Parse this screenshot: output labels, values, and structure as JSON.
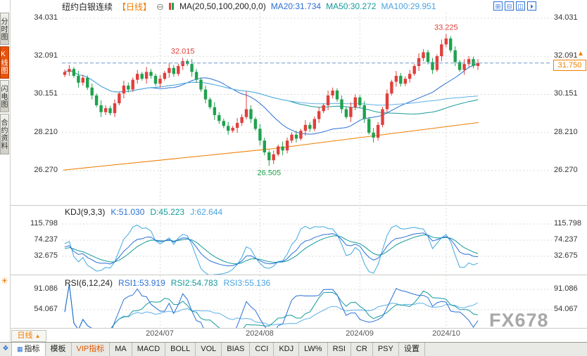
{
  "header": {
    "title": "纽约白银连续",
    "period_tag": "【日线】",
    "ma_label": "MA(20,50,100,200,0,0)",
    "ma20": "MA20:31.734",
    "ma50": "MA50:30.272",
    "ma100": "MA100:29.951"
  },
  "icons": {
    "zoom_out": "⊖",
    "layout_grid": "⊞",
    "layout_split_h": "⊟",
    "layout_split_v": "◫",
    "layout_expand": "⏵",
    "up_arrow": "▲",
    "sun": "☀",
    "window_grid": "❖",
    "tab_grid": "▦"
  },
  "sidebar": {
    "items": [
      {
        "label": "分时图"
      },
      {
        "label": "K线图"
      },
      {
        "label": "闪电图"
      },
      {
        "label": "合约资料"
      }
    ]
  },
  "main_chart": {
    "y_labels": [
      "34.031",
      "32.091",
      "30.151",
      "28.210",
      "26.270"
    ],
    "current_price": "31.750"
  },
  "kdj": {
    "header": "KDJ(9,3,3)",
    "k": "K:51.030",
    "d": "D:45.223",
    "j": "J:62.644",
    "y_labels": [
      "115.798",
      "74.237",
      "32.675"
    ]
  },
  "rsi": {
    "header": "RSI(6,12,24)",
    "r1": "RSI1:53.919",
    "r2": "RSI2:54.783",
    "r3": "RSI3:55.136",
    "y_labels": [
      "91.086",
      "54.067"
    ]
  },
  "x_axis": {
    "labels": [
      "2024/07",
      "2024/08",
      "2024/09",
      "2024/10"
    ]
  },
  "period_selector": {
    "label": "日线"
  },
  "watermark": "FX678",
  "tabs": [
    "指标",
    "模板",
    "VIP指标",
    "MA",
    "MACD",
    "BOLL",
    "VOL",
    "BIAS",
    "CCI",
    "KDJ",
    "LW%",
    "RSI",
    "CR",
    "PSY",
    "设置"
  ],
  "chart_data": {
    "type": "candlestick",
    "symbol": "纽约白银连续",
    "period": "日线",
    "main_y_ticks": [
      34.031,
      32.091,
      30.151,
      28.21,
      26.27
    ],
    "current_price_value": 31.75,
    "ma_values": {
      "ma20": 31.734,
      "ma50": 30.272,
      "ma100": 29.951
    },
    "ma200_endpoints": [
      26.3,
      28.72
    ],
    "kdj_params": [
      9,
      3,
      3
    ],
    "kdj_values": {
      "k": 51.03,
      "d": 45.223,
      "j": 62.644
    },
    "kdj_y_ticks": [
      115.798,
      74.237,
      32.675
    ],
    "rsi_params": [
      6,
      12,
      24
    ],
    "rsi_values": {
      "rsi1": 53.919,
      "rsi2": 54.783,
      "rsi3": 55.136
    },
    "rsi_y_ticks": [
      91.086,
      54.067
    ],
    "x_axis_months": [
      "2024/07",
      "2024/08",
      "2024/09",
      "2024/10"
    ],
    "month_tick_indices": [
      21,
      43,
      65,
      84
    ],
    "annotations": [
      {
        "index": 26,
        "value": 32.015,
        "text": "32.015",
        "above": true,
        "color": "#e0403c"
      },
      {
        "index": 84,
        "value": 33.225,
        "text": "33.225",
        "above": true,
        "color": "#e0403c"
      },
      {
        "index": 45,
        "value": 26.505,
        "text": "26.505",
        "above": false,
        "color": "#1fa24e"
      }
    ],
    "colors": {
      "up": "#e0403c",
      "down": "#1fa24e",
      "ma20": "#2b6fd6",
      "ma50": "#159a9a",
      "ma100": "#5fb0e8",
      "ma200": "#f07d00",
      "grid": "#d9d9d4",
      "dash": "#6a9ad0",
      "kdj_k": "#2b6fd6",
      "kdj_d": "#159a9a",
      "kdj_j": "#3fa9df",
      "rsi1": "#2b6fd6",
      "rsi2": "#159a9a",
      "rsi3": "#5fb0e8"
    },
    "candles": [
      [
        31.15,
        31.42,
        31.03,
        31.3
      ],
      [
        31.3,
        31.65,
        31.1,
        31.45
      ],
      [
        31.45,
        31.55,
        31.0,
        31.1
      ],
      [
        31.1,
        31.35,
        30.5,
        30.75
      ],
      [
        30.75,
        31.15,
        30.6,
        31.0
      ],
      [
        31.0,
        31.12,
        30.38,
        30.5
      ],
      [
        30.5,
        30.7,
        29.9,
        30.1
      ],
      [
        30.1,
        30.2,
        29.5,
        29.6
      ],
      [
        29.6,
        29.85,
        29.0,
        29.25
      ],
      [
        29.25,
        29.6,
        29.1,
        29.45
      ],
      [
        29.45,
        29.57,
        29.08,
        29.2
      ],
      [
        29.2,
        29.9,
        29.0,
        29.7
      ],
      [
        29.7,
        30.3,
        29.6,
        30.2
      ],
      [
        30.2,
        30.85,
        29.95,
        30.6
      ],
      [
        30.6,
        30.75,
        30.25,
        30.4
      ],
      [
        30.4,
        31.02,
        30.28,
        30.9
      ],
      [
        30.9,
        31.4,
        30.7,
        31.2
      ],
      [
        31.2,
        31.3,
        30.85,
        30.95
      ],
      [
        30.95,
        31.55,
        30.7,
        31.3
      ],
      [
        31.3,
        31.45,
        30.95,
        31.1
      ],
      [
        31.1,
        31.22,
        30.58,
        30.7
      ],
      [
        30.7,
        31.15,
        30.5,
        30.95
      ],
      [
        30.95,
        31.35,
        30.85,
        31.25
      ],
      [
        31.25,
        31.75,
        31.0,
        31.5
      ],
      [
        31.5,
        31.65,
        31.05,
        31.2
      ],
      [
        31.2,
        31.72,
        31.08,
        31.6
      ],
      [
        31.6,
        32.015,
        31.4,
        31.85
      ],
      [
        31.85,
        31.95,
        31.6,
        31.7
      ],
      [
        31.7,
        31.95,
        31.05,
        31.3
      ],
      [
        31.3,
        31.45,
        30.75,
        30.9
      ],
      [
        30.9,
        31.02,
        30.28,
        30.4
      ],
      [
        30.4,
        30.6,
        29.7,
        29.9
      ],
      [
        29.9,
        30.0,
        29.4,
        29.5
      ],
      [
        29.5,
        29.75,
        28.85,
        29.1
      ],
      [
        29.1,
        29.25,
        28.65,
        28.8
      ],
      [
        28.8,
        28.92,
        28.43,
        28.55
      ],
      [
        28.55,
        28.75,
        28.1,
        28.3
      ],
      [
        28.3,
        28.55,
        28.2,
        28.45
      ],
      [
        28.45,
        28.95,
        28.2,
        28.7
      ],
      [
        28.7,
        29.15,
        28.55,
        29.0
      ],
      [
        29.0,
        30.3,
        28.88,
        29.4
      ],
      [
        29.4,
        29.6,
        28.7,
        28.9
      ],
      [
        28.9,
        29.0,
        28.3,
        28.4
      ],
      [
        28.4,
        28.65,
        27.55,
        27.8
      ],
      [
        27.8,
        27.95,
        27.05,
        27.2
      ],
      [
        27.2,
        27.32,
        26.505,
        26.8
      ],
      [
        26.8,
        27.3,
        26.6,
        27.1
      ],
      [
        27.1,
        27.6,
        27.0,
        27.5
      ],
      [
        27.5,
        27.75,
        27.05,
        27.3
      ],
      [
        27.3,
        27.95,
        27.15,
        27.8
      ],
      [
        27.8,
        28.22,
        27.68,
        28.1
      ],
      [
        28.1,
        28.3,
        27.7,
        27.9
      ],
      [
        27.9,
        28.4,
        27.8,
        28.3
      ],
      [
        28.3,
        28.85,
        28.05,
        28.6
      ],
      [
        28.6,
        28.75,
        28.25,
        28.4
      ],
      [
        28.4,
        29.02,
        28.28,
        28.9
      ],
      [
        28.9,
        29.5,
        28.7,
        29.3
      ],
      [
        29.3,
        29.7,
        29.2,
        29.6
      ],
      [
        29.6,
        30.35,
        29.35,
        30.1
      ],
      [
        30.1,
        30.5,
        29.95,
        30.35
      ],
      [
        30.35,
        30.47,
        29.78,
        29.9
      ],
      [
        29.9,
        30.1,
        29.2,
        29.4
      ],
      [
        29.4,
        29.5,
        28.9,
        29.0
      ],
      [
        29.0,
        29.75,
        28.75,
        29.5
      ],
      [
        29.5,
        30.15,
        29.35,
        30.0
      ],
      [
        30.0,
        30.12,
        29.48,
        29.6
      ],
      [
        29.6,
        29.8,
        28.7,
        28.9
      ],
      [
        28.9,
        29.0,
        28.1,
        28.2
      ],
      [
        28.2,
        28.45,
        27.7,
        27.95
      ],
      [
        27.95,
        28.75,
        27.8,
        28.6
      ],
      [
        28.6,
        29.52,
        28.48,
        29.4
      ],
      [
        29.4,
        30.4,
        29.2,
        30.2
      ],
      [
        30.2,
        30.9,
        30.1,
        30.8
      ],
      [
        30.8,
        31.35,
        30.55,
        31.1
      ],
      [
        31.1,
        31.25,
        30.55,
        30.7
      ],
      [
        30.7,
        31.07,
        30.58,
        30.95
      ],
      [
        30.95,
        31.4,
        30.75,
        31.2
      ],
      [
        31.2,
        31.7,
        31.1,
        31.6
      ],
      [
        31.6,
        32.25,
        31.35,
        32.0
      ],
      [
        32.0,
        32.45,
        31.85,
        32.3
      ],
      [
        32.3,
        32.42,
        31.68,
        31.8
      ],
      [
        31.8,
        32.0,
        31.2,
        31.4
      ],
      [
        31.4,
        32.2,
        31.3,
        32.1
      ],
      [
        32.1,
        32.95,
        31.85,
        32.7
      ],
      [
        32.7,
        33.225,
        32.55,
        33.0
      ],
      [
        33.0,
        33.12,
        32.28,
        32.4
      ],
      [
        32.4,
        32.6,
        31.6,
        31.8
      ],
      [
        31.8,
        31.9,
        31.3,
        31.4
      ],
      [
        31.4,
        31.95,
        31.15,
        31.7
      ],
      [
        31.7,
        32.1,
        31.55,
        31.95
      ],
      [
        31.95,
        32.07,
        31.48,
        31.6
      ],
      [
        31.6,
        31.95,
        31.4,
        31.75
      ]
    ]
  }
}
